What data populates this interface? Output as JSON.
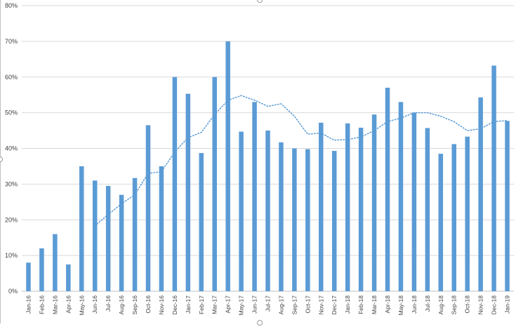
{
  "chart_data": {
    "type": "bar",
    "title": "",
    "xlabel": "",
    "ylabel": "",
    "ylim": [
      0,
      0.8
    ],
    "y_ticks": [
      0,
      0.1,
      0.2,
      0.3,
      0.4,
      0.5,
      0.6,
      0.7,
      0.8
    ],
    "y_tick_labels": [
      "0%",
      "10%",
      "20%",
      "30%",
      "40%",
      "50%",
      "60%",
      "70%",
      "80%"
    ],
    "grid": true,
    "categories": [
      "Jan-16",
      "Feb-16",
      "Mar-16",
      "Apr-16",
      "May-16",
      "Jun-16",
      "Jul-16",
      "Aug-16",
      "Sep-16",
      "Oct-16",
      "Nov-16",
      "Dec-16",
      "Jan-17",
      "Feb-17",
      "Mar-17",
      "Apr-17",
      "May-17",
      "Jun-17",
      "Jul-17",
      "Aug-17",
      "Sep-17",
      "Oct-17",
      "Nov-17",
      "Dec-17",
      "Jan-18",
      "Feb-18",
      "Mar-18",
      "Apr-18",
      "May-18",
      "Jun-18",
      "Jul-18",
      "Aug-18",
      "Sep-18",
      "Oct-18",
      "Nov-18",
      "Dec-18",
      "Jan-19"
    ],
    "series": [
      {
        "type": "bar",
        "color": "#5b9bd5",
        "values": [
          0.08,
          0.12,
          0.16,
          0.075,
          0.35,
          0.31,
          0.295,
          0.27,
          0.317,
          0.465,
          0.35,
          0.6,
          0.553,
          0.387,
          0.6,
          0.7,
          0.447,
          0.53,
          0.45,
          0.417,
          0.4,
          0.398,
          0.472,
          0.393,
          0.47,
          0.458,
          0.495,
          0.57,
          0.53,
          0.5,
          0.457,
          0.385,
          0.412,
          0.433,
          0.543,
          0.632,
          0.477
        ]
      },
      {
        "type": "trendline",
        "style": "dotted",
        "color": "#5b9bd5",
        "values": [
          null,
          null,
          null,
          null,
          null,
          0.183,
          0.215,
          0.245,
          0.27,
          0.33,
          0.335,
          0.39,
          0.43,
          0.445,
          0.495,
          0.535,
          0.548,
          0.535,
          0.518,
          0.525,
          0.49,
          0.44,
          0.443,
          0.423,
          0.425,
          0.432,
          0.45,
          0.475,
          0.485,
          0.5,
          0.5,
          0.49,
          0.475,
          0.45,
          0.455,
          0.475,
          0.478
        ]
      }
    ]
  }
}
